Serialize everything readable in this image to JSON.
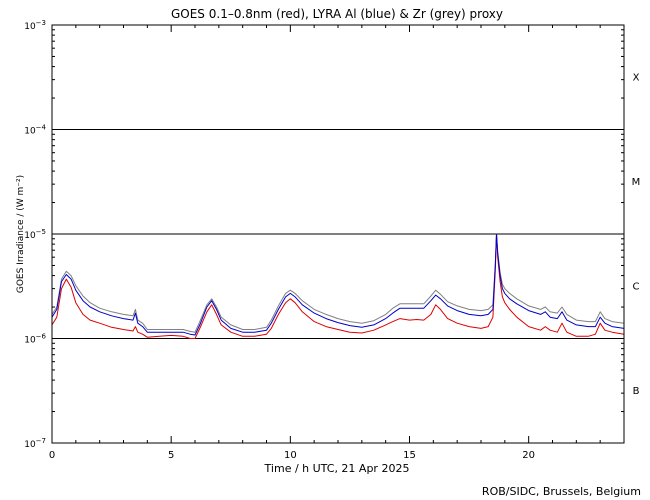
{
  "chart_data": {
    "type": "line",
    "title": "GOES 0.1–0.8nm (red), LYRA Al (blue) & Zr (grey) proxy",
    "xlabel": "Time / h UTC, 21 Apr 2025",
    "ylabel": "GOES Irradiance / (W m⁻²)",
    "xlim": [
      0,
      24
    ],
    "ylim": [
      1e-07,
      0.001
    ],
    "y_scale": "log",
    "x_ticks": [
      0,
      5,
      10,
      15,
      20
    ],
    "y_ticks": [
      {
        "value": 1e-07,
        "base": "10",
        "exp": "−7"
      },
      {
        "value": 1e-06,
        "base": "10",
        "exp": "−6"
      },
      {
        "value": 1e-05,
        "base": "10",
        "exp": "−5"
      },
      {
        "value": 0.0001,
        "base": "10",
        "exp": "−4"
      },
      {
        "value": 0.001,
        "base": "10",
        "exp": "−3"
      }
    ],
    "flare_class_lines": [
      1e-06,
      1e-05,
      0.0001
    ],
    "flare_classes": [
      {
        "label": "X",
        "y": 0.00032
      },
      {
        "label": "M",
        "y": 3.2e-05
      },
      {
        "label": "C",
        "y": 3.2e-06
      },
      {
        "label": "B",
        "y": 3.2e-07
      }
    ],
    "series": [
      {
        "name": "GOES 0.1–0.8nm",
        "color": "#dd0000",
        "x": [
          0,
          0.2,
          0.4,
          0.6,
          0.8,
          1.0,
          1.3,
          1.6,
          2.0,
          2.5,
          3.0,
          3.4,
          3.5,
          3.6,
          3.8,
          4.0,
          4.5,
          5.0,
          5.5,
          5.8,
          6.0,
          6.2,
          6.5,
          6.7,
          6.9,
          7.1,
          7.5,
          8.0,
          8.5,
          9.0,
          9.2,
          9.5,
          9.8,
          10.0,
          10.2,
          10.5,
          11.0,
          11.5,
          12.0,
          12.5,
          13.0,
          13.5,
          14.0,
          14.3,
          14.6,
          15.0,
          15.3,
          15.6,
          15.9,
          16.1,
          16.3,
          16.6,
          17.0,
          17.5,
          18.0,
          18.3,
          18.5,
          18.6,
          18.65,
          18.7,
          18.8,
          18.9,
          19.0,
          19.2,
          19.5,
          20.0,
          20.5,
          20.7,
          20.9,
          21.2,
          21.4,
          21.6,
          22.0,
          22.5,
          22.8,
          23.0,
          23.2,
          23.5,
          24.0
        ],
        "values": [
          1.35e-06,
          1.6e-06,
          3e-06,
          3.7e-06,
          3.1e-06,
          2.2e-06,
          1.7e-06,
          1.5e-06,
          1.4e-06,
          1.28e-06,
          1.22e-06,
          1.18e-06,
          1.3e-06,
          1.15e-06,
          1.1e-06,
          1.03e-06,
          1.05e-06,
          1.07e-06,
          1.05e-06,
          1e-06,
          1e-06,
          1.25e-06,
          1.8e-06,
          2.1e-06,
          1.7e-06,
          1.35e-06,
          1.15e-06,
          1.05e-06,
          1.05e-06,
          1.1e-06,
          1.25e-06,
          1.7e-06,
          2.2e-06,
          2.4e-06,
          2.2e-06,
          1.8e-06,
          1.45e-06,
          1.3e-06,
          1.22e-06,
          1.15e-06,
          1.13e-06,
          1.2e-06,
          1.35e-06,
          1.45e-06,
          1.55e-06,
          1.5e-06,
          1.52e-06,
          1.5e-06,
          1.7e-06,
          2.1e-06,
          1.9e-06,
          1.55e-06,
          1.4e-06,
          1.3e-06,
          1.25e-06,
          1.3e-06,
          1.6e-06,
          4.5e-06,
          1e-05,
          6e-06,
          3.5e-06,
          2.5e-06,
          2.2e-06,
          1.9e-06,
          1.6e-06,
          1.3e-06,
          1.2e-06,
          1.3e-06,
          1.2e-06,
          1.15e-06,
          1.4e-06,
          1.15e-06,
          1.05e-06,
          1.05e-06,
          1.1e-06,
          1.4e-06,
          1.2e-06,
          1.15e-06,
          1.1e-06
        ]
      },
      {
        "name": "LYRA Al proxy",
        "color": "#0000cc",
        "x": [
          0,
          0.2,
          0.4,
          0.6,
          0.8,
          1.0,
          1.3,
          1.6,
          2.0,
          2.5,
          3.0,
          3.4,
          3.5,
          3.6,
          3.8,
          4.0,
          4.5,
          5.0,
          5.5,
          5.8,
          6.0,
          6.2,
          6.5,
          6.7,
          6.9,
          7.1,
          7.5,
          8.0,
          8.5,
          9.0,
          9.2,
          9.5,
          9.8,
          10.0,
          10.2,
          10.5,
          11.0,
          11.5,
          12.0,
          12.5,
          13.0,
          13.5,
          14.0,
          14.3,
          14.6,
          15.0,
          15.3,
          15.6,
          15.9,
          16.1,
          16.3,
          16.6,
          17.0,
          17.5,
          18.0,
          18.3,
          18.5,
          18.6,
          18.65,
          18.7,
          18.8,
          18.9,
          19.0,
          19.2,
          19.5,
          20.0,
          20.5,
          20.7,
          20.9,
          21.2,
          21.4,
          21.6,
          22.0,
          22.5,
          22.8,
          23.0,
          23.2,
          23.5,
          24.0
        ],
        "values": [
          1.6e-06,
          1.9e-06,
          3.5e-06,
          4.1e-06,
          3.7e-06,
          2.9e-06,
          2.3e-06,
          2e-06,
          1.8e-06,
          1.65e-06,
          1.55e-06,
          1.5e-06,
          1.75e-06,
          1.4e-06,
          1.3e-06,
          1.15e-06,
          1.15e-06,
          1.15e-06,
          1.15e-06,
          1.1e-06,
          1.08e-06,
          1.35e-06,
          2e-06,
          2.3e-06,
          1.9e-06,
          1.5e-06,
          1.25e-06,
          1.15e-06,
          1.15e-06,
          1.2e-06,
          1.4e-06,
          1.9e-06,
          2.5e-06,
          2.7e-06,
          2.5e-06,
          2.1e-06,
          1.75e-06,
          1.55e-06,
          1.42e-06,
          1.33e-06,
          1.28e-06,
          1.35e-06,
          1.55e-06,
          1.75e-06,
          1.95e-06,
          1.95e-06,
          1.95e-06,
          1.95e-06,
          2.3e-06,
          2.6e-06,
          2.4e-06,
          2.05e-06,
          1.85e-06,
          1.7e-06,
          1.65e-06,
          1.7e-06,
          1.9e-06,
          5e-06,
          1e-05,
          6.5e-06,
          4e-06,
          3e-06,
          2.7e-06,
          2.4e-06,
          2.15e-06,
          1.85e-06,
          1.7e-06,
          1.8e-06,
          1.6e-06,
          1.55e-06,
          1.8e-06,
          1.5e-06,
          1.35e-06,
          1.3e-06,
          1.3e-06,
          1.6e-06,
          1.4e-06,
          1.3e-06,
          1.25e-06
        ]
      },
      {
        "name": "LYRA Zr proxy",
        "color": "#808080",
        "x": [
          0,
          0.2,
          0.4,
          0.6,
          0.8,
          1.0,
          1.3,
          1.6,
          2.0,
          2.5,
          3.0,
          3.4,
          3.5,
          3.6,
          3.8,
          4.0,
          4.5,
          5.0,
          5.5,
          5.8,
          6.0,
          6.2,
          6.5,
          6.7,
          6.9,
          7.1,
          7.5,
          8.0,
          8.5,
          9.0,
          9.2,
          9.5,
          9.8,
          10.0,
          10.2,
          10.5,
          11.0,
          11.5,
          12.0,
          12.5,
          13.0,
          13.5,
          14.0,
          14.3,
          14.6,
          15.0,
          15.3,
          15.6,
          15.9,
          16.1,
          16.3,
          16.6,
          17.0,
          17.5,
          18.0,
          18.3,
          18.5,
          18.6,
          18.65,
          18.7,
          18.8,
          18.9,
          19.0,
          19.2,
          19.5,
          20.0,
          20.5,
          20.7,
          20.9,
          21.2,
          21.4,
          21.6,
          22.0,
          22.5,
          22.8,
          23.0,
          23.2,
          23.5,
          24.0
        ],
        "values": [
          1.7e-06,
          2e-06,
          3.7e-06,
          4.4e-06,
          4e-06,
          3.2e-06,
          2.55e-06,
          2.2e-06,
          1.95e-06,
          1.8e-06,
          1.7e-06,
          1.65e-06,
          1.9e-06,
          1.5e-06,
          1.4e-06,
          1.22e-06,
          1.22e-06,
          1.22e-06,
          1.22e-06,
          1.17e-06,
          1.15e-06,
          1.45e-06,
          2.1e-06,
          2.4e-06,
          2e-06,
          1.6e-06,
          1.35e-06,
          1.22e-06,
          1.22e-06,
          1.28e-06,
          1.5e-06,
          2.05e-06,
          2.7e-06,
          2.9e-06,
          2.7e-06,
          2.3e-06,
          1.9e-06,
          1.7e-06,
          1.55e-06,
          1.45e-06,
          1.4e-06,
          1.48e-06,
          1.7e-06,
          1.95e-06,
          2.15e-06,
          2.15e-06,
          2.15e-06,
          2.15e-06,
          2.55e-06,
          2.9e-06,
          2.65e-06,
          2.25e-06,
          2.05e-06,
          1.9e-06,
          1.85e-06,
          1.9e-06,
          2.1e-06,
          5.2e-06,
          1e-05,
          6.8e-06,
          4.3e-06,
          3.3e-06,
          3e-06,
          2.7e-06,
          2.4e-06,
          2.05e-06,
          1.9e-06,
          2e-06,
          1.8e-06,
          1.75e-06,
          2e-06,
          1.7e-06,
          1.5e-06,
          1.45e-06,
          1.45e-06,
          1.8e-06,
          1.55e-06,
          1.45e-06,
          1.4e-06
        ]
      }
    ],
    "grid": false,
    "legend": "none (colours named in title)"
  },
  "credit": "ROB/SIDC, Brussels, Belgium"
}
